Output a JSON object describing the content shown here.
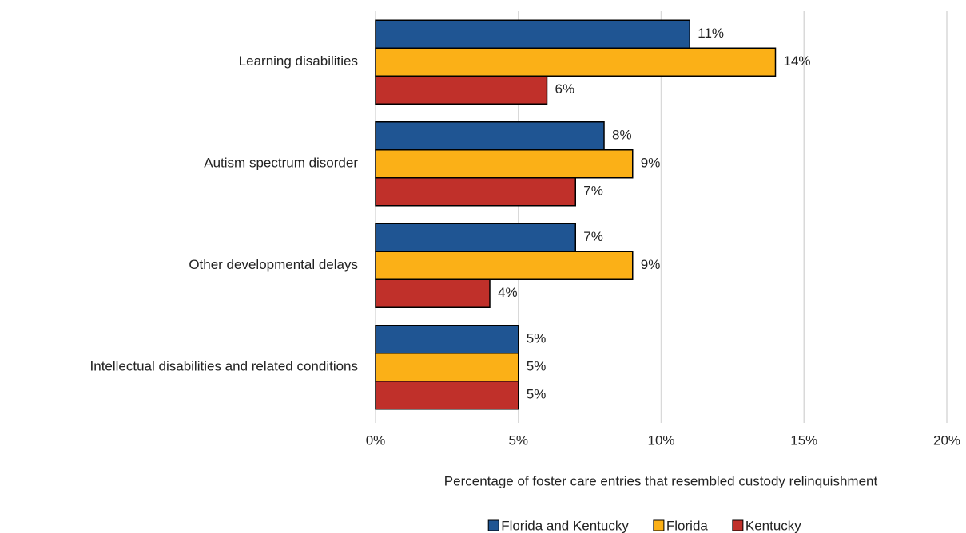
{
  "chart_data": {
    "type": "hbar",
    "categories": [
      "Learning disabilities",
      "Autism spectrum disorder",
      "Other developmental delays",
      "Intellectual disabilities and related conditions"
    ],
    "series": [
      {
        "name": "Florida and Kentucky",
        "color": "#1f5593",
        "values": [
          11,
          8,
          7,
          5
        ],
        "value_labels": [
          "11%",
          "8%",
          "7%",
          "5%"
        ]
      },
      {
        "name": "Florida",
        "color": "#fbb017",
        "values": [
          14,
          9,
          9,
          5
        ],
        "value_labels": [
          "14%",
          "9%",
          "9%",
          "5%"
        ]
      },
      {
        "name": "Kentucky",
        "color": "#c0302a",
        "values": [
          6,
          7,
          4,
          5
        ],
        "value_labels": [
          "6%",
          "7%",
          "4%",
          "5%"
        ]
      }
    ],
    "x_label": "Percentage of foster care entries that resembled custody relinquishment",
    "xlim": [
      0,
      20
    ],
    "xticks": [
      {
        "value": 0,
        "label": "0%"
      },
      {
        "value": 5,
        "label": "5%"
      },
      {
        "value": 10,
        "label": "10%"
      },
      {
        "value": 15,
        "label": "15%"
      },
      {
        "value": 20,
        "label": "20%"
      }
    ],
    "grid": true,
    "legend": "bottom"
  }
}
